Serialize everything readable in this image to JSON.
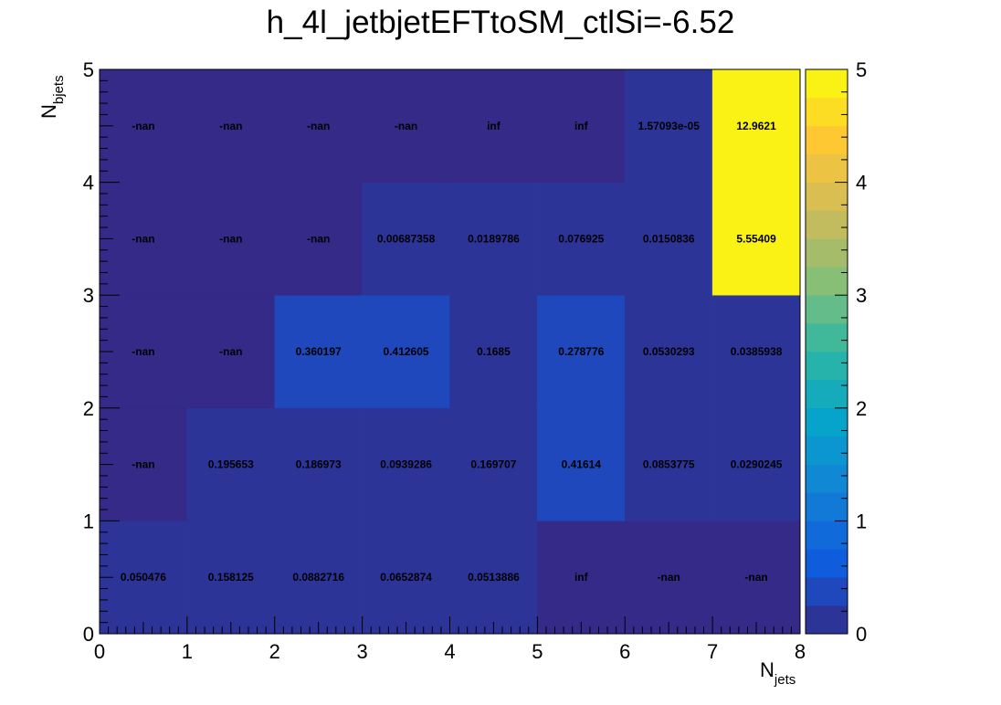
{
  "chart_data": {
    "type": "heatmap",
    "title": "h_4l_jetbjetEFTtoSM_ctlSi=-6.52",
    "xlabel": {
      "main": "N",
      "sub": "jets"
    },
    "ylabel": {
      "main": "N",
      "sub": "bjets"
    },
    "x_edges": [
      0,
      1,
      2,
      3,
      4,
      5,
      6,
      7,
      8
    ],
    "y_edges": [
      0,
      1,
      2,
      3,
      4,
      5
    ],
    "xlim": [
      0,
      8
    ],
    "ylim": [
      0,
      5
    ],
    "zlim": [
      0,
      5
    ],
    "x_ticks": [
      "0",
      "1",
      "2",
      "3",
      "4",
      "5",
      "6",
      "7",
      "8"
    ],
    "y_ticks": [
      "0",
      "1",
      "2",
      "3",
      "4",
      "5"
    ],
    "z_ticks": [
      "0",
      "1",
      "2",
      "3",
      "4",
      "5"
    ],
    "palette": "kBird",
    "nan_color": "#352a87",
    "rows": [
      {
        "y_bin": "0-1",
        "labels": [
          "0.050476",
          "0.158125",
          "0.0882716",
          "0.0652874",
          "0.0513886",
          "inf",
          "-nan",
          "-nan"
        ],
        "z": [
          0.050476,
          0.158125,
          0.0882716,
          0.0652874,
          0.0513886,
          null,
          null,
          null
        ]
      },
      {
        "y_bin": "1-2",
        "labels": [
          "-nan",
          "0.195653",
          "0.186973",
          "0.0939286",
          "0.169707",
          "0.41614",
          "0.0853775",
          "0.0290245"
        ],
        "z": [
          null,
          0.195653,
          0.186973,
          0.0939286,
          0.169707,
          0.41614,
          0.0853775,
          0.0290245
        ]
      },
      {
        "y_bin": "2-3",
        "labels": [
          "-nan",
          "-nan",
          "0.360197",
          "0.412605",
          "0.1685",
          "0.278776",
          "0.0530293",
          "0.0385938"
        ],
        "z": [
          null,
          null,
          0.360197,
          0.412605,
          0.1685,
          0.278776,
          0.0530293,
          0.0385938
        ]
      },
      {
        "y_bin": "3-4",
        "labels": [
          "-nan",
          "-nan",
          "-nan",
          "0.00687358",
          "0.0189786",
          "0.076925",
          "0.0150836",
          "5.55409"
        ],
        "z": [
          null,
          null,
          null,
          0.00687358,
          0.0189786,
          0.076925,
          0.0150836,
          5.55409
        ]
      },
      {
        "y_bin": "4-5",
        "labels": [
          "-nan",
          "-nan",
          "-nan",
          "-nan",
          "inf",
          "inf",
          "1.57093e-05",
          "12.9621"
        ],
        "z": [
          null,
          null,
          null,
          null,
          null,
          null,
          1.57093e-05,
          12.9621
        ]
      }
    ]
  }
}
